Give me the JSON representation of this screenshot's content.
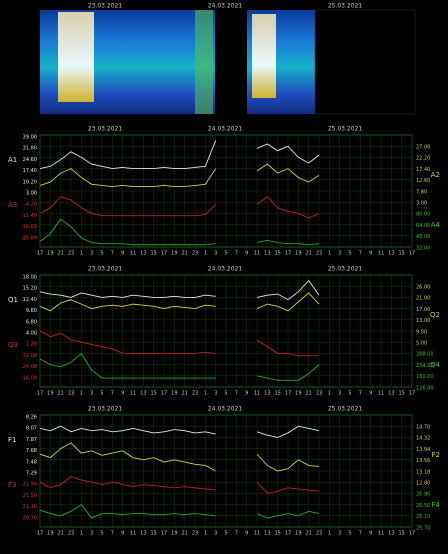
{
  "chart_data": [
    {
      "type": "line",
      "title": "23.03.2021",
      "dates": [
        "23.03.2021",
        "24.03.2021",
        "25.03.2021"
      ],
      "categories": [
        "17",
        "19",
        "21",
        "23",
        "1",
        "3",
        "5",
        "7",
        "9",
        "11",
        "13",
        "15",
        "17",
        "19",
        "21",
        "23",
        "1",
        "3",
        "5",
        "7",
        "9",
        "11",
        "13",
        "15",
        "17",
        "19",
        "21",
        "23",
        "1",
        "3",
        "5",
        "7",
        "9",
        "11",
        "13",
        "15",
        "17"
      ],
      "ylim": [
        0,
        100
      ],
      "left_labels": [
        "39.00",
        "31.80",
        "24.60",
        "17.40",
        "10.20",
        "3.00",
        "-4.20",
        "-11.40",
        "-18.60",
        "-25.80"
      ],
      "right_labels": [
        "27.00",
        "22.20",
        "17.40",
        "12.60",
        "7.80",
        "3.00",
        "80.00",
        "64.00",
        "48.00",
        "32.00"
      ],
      "axis_names": [
        "A1",
        "A3",
        "A2",
        "A4"
      ],
      "series": [
        {
          "name": "A1",
          "color": "#e8e8e8",
          "values": [
            70,
            72,
            78,
            85,
            80,
            74,
            72,
            70,
            71,
            70,
            70,
            70,
            71,
            70,
            70,
            71,
            72,
            95,
            null,
            null,
            null,
            88,
            92,
            86,
            90,
            80,
            75,
            82,
            null,
            null,
            null,
            null,
            null,
            null,
            null,
            null,
            null
          ]
        },
        {
          "name": "A2",
          "color": "#d8d040",
          "values": [
            55,
            58,
            66,
            70,
            62,
            56,
            55,
            54,
            55,
            54,
            54,
            54,
            55,
            54,
            54,
            55,
            56,
            70,
            null,
            null,
            null,
            68,
            74,
            66,
            70,
            62,
            58,
            64,
            null,
            null,
            null,
            null,
            null,
            null,
            null,
            null,
            null
          ]
        },
        {
          "name": "A3",
          "color": "#c02020",
          "values": [
            30,
            35,
            45,
            42,
            35,
            30,
            28,
            28,
            28,
            28,
            28,
            28,
            28,
            28,
            28,
            28,
            29,
            38,
            null,
            null,
            null,
            38,
            45,
            35,
            32,
            30,
            26,
            30,
            null,
            null,
            null,
            null,
            null,
            null,
            null,
            null,
            null
          ]
        },
        {
          "name": "A4",
          "color": "#20b020",
          "values": [
            5,
            12,
            25,
            18,
            8,
            4,
            3,
            3,
            3,
            2,
            2,
            2,
            2,
            2,
            2,
            2,
            2,
            3,
            null,
            null,
            null,
            4,
            6,
            4,
            3,
            3,
            2,
            3,
            null,
            null,
            null,
            null,
            null,
            null,
            null,
            null,
            null
          ]
        }
      ]
    },
    {
      "type": "line",
      "ylim": [
        0,
        100
      ],
      "left_labels": [
        "18.00",
        "15.20",
        "12.40",
        "9.60",
        "6.80",
        "4.00",
        "1.20",
        "32.00",
        "24.00",
        "16.00"
      ],
      "right_labels": [
        "26.00",
        "21.00",
        "17.00",
        "13.00",
        "9.00",
        "5.00",
        "288.00",
        "234.00",
        "180.00",
        "126.00"
      ],
      "axis_names": [
        "Q1",
        "Q3",
        "Q2",
        "Q4"
      ],
      "series": [
        {
          "name": "Q1",
          "color": "#e8e8e8",
          "values": [
            85,
            83,
            82,
            80,
            84,
            82,
            80,
            81,
            80,
            82,
            81,
            80,
            80,
            81,
            80,
            80,
            82,
            81,
            null,
            null,
            null,
            80,
            82,
            83,
            78,
            85,
            95,
            82,
            null,
            null,
            null,
            null,
            null,
            null,
            null,
            null,
            null
          ]
        },
        {
          "name": "Q2",
          "color": "#d8d040",
          "values": [
            72,
            68,
            75,
            78,
            74,
            70,
            72,
            73,
            72,
            74,
            73,
            72,
            70,
            72,
            71,
            70,
            73,
            72,
            null,
            null,
            null,
            70,
            74,
            72,
            68,
            76,
            84,
            74,
            null,
            null,
            null,
            null,
            null,
            null,
            null,
            null,
            null
          ]
        },
        {
          "name": "Q3",
          "color": "#c02020",
          "values": [
            50,
            45,
            48,
            42,
            40,
            38,
            36,
            34,
            30,
            30,
            30,
            30,
            30,
            30,
            30,
            30,
            31,
            30,
            null,
            null,
            null,
            42,
            36,
            30,
            30,
            28,
            28,
            28,
            null,
            null,
            null,
            null,
            null,
            null,
            null,
            null,
            null
          ]
        },
        {
          "name": "Q4",
          "color": "#20b020",
          "values": [
            25,
            20,
            18,
            22,
            30,
            15,
            8,
            8,
            8,
            8,
            8,
            8,
            8,
            8,
            8,
            8,
            8,
            8,
            null,
            null,
            null,
            10,
            8,
            6,
            6,
            6,
            12,
            20,
            null,
            null,
            null,
            null,
            null,
            null,
            null,
            null,
            null
          ]
        }
      ]
    },
    {
      "type": "line",
      "ylim": [
        0,
        100
      ],
      "left_labels": [
        "8.26",
        "8.07",
        "7.87",
        "7.68",
        "7.48",
        "7.29",
        "21.90",
        "21.50",
        "21.10",
        "20.70"
      ],
      "right_labels": [
        "14.70",
        "14.32",
        "13.94",
        "13.56",
        "13.18",
        "12.80",
        "26.90",
        "26.50",
        "26.10",
        "25.70"
      ],
      "axis_names": [
        "F1",
        "F3",
        "F2",
        "F4"
      ],
      "series": [
        {
          "name": "F1",
          "color": "#e8e8e8",
          "values": [
            88,
            86,
            90,
            85,
            88,
            86,
            87,
            85,
            86,
            88,
            86,
            84,
            85,
            87,
            86,
            84,
            85,
            83,
            null,
            null,
            null,
            85,
            82,
            80,
            84,
            90,
            88,
            86,
            null,
            null,
            null,
            null,
            null,
            null,
            null,
            null,
            null
          ]
        },
        {
          "name": "F2",
          "color": "#d8d040",
          "values": [
            65,
            62,
            70,
            75,
            66,
            68,
            64,
            66,
            68,
            62,
            60,
            62,
            58,
            60,
            58,
            56,
            55,
            50,
            null,
            null,
            null,
            65,
            55,
            50,
            52,
            60,
            55,
            54,
            null,
            null,
            null,
            null,
            null,
            null,
            null,
            null,
            null
          ]
        },
        {
          "name": "F3",
          "color": "#c02020",
          "values": [
            40,
            35,
            38,
            45,
            42,
            40,
            38,
            40,
            38,
            36,
            38,
            37,
            36,
            35,
            36,
            35,
            34,
            33,
            null,
            null,
            null,
            40,
            30,
            32,
            35,
            34,
            33,
            32,
            null,
            null,
            null,
            null,
            null,
            null,
            null,
            null,
            null
          ]
        },
        {
          "name": "F4",
          "color": "#20b020",
          "values": [
            15,
            12,
            10,
            14,
            20,
            8,
            12,
            12,
            11,
            12,
            12,
            11,
            11,
            12,
            11,
            12,
            11,
            10,
            null,
            null,
            null,
            12,
            8,
            10,
            12,
            10,
            14,
            12,
            null,
            null,
            null,
            null,
            null,
            null,
            null,
            null,
            null
          ]
        }
      ]
    }
  ]
}
